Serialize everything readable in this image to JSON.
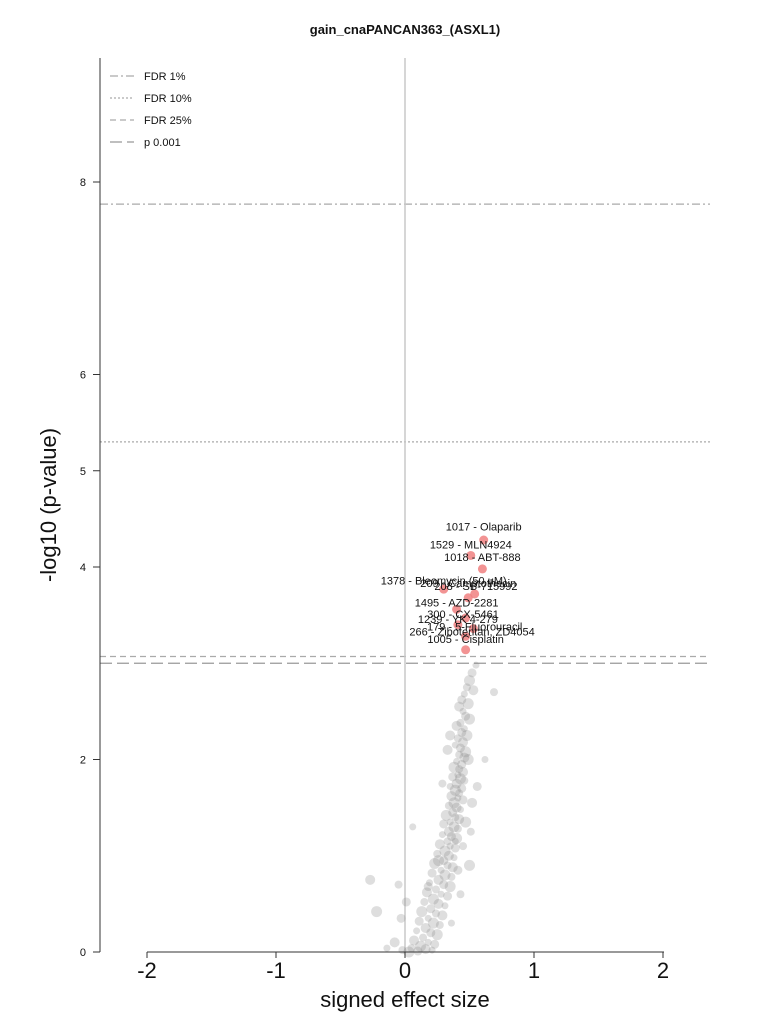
{
  "chart_data": {
    "type": "scatter",
    "title": "gain_cnaPANCAN363_(ASXL1)",
    "xlabel": "signed effect size",
    "ylabel": "-log10 (p-value)",
    "xlim": [
      -2.4,
      2.4
    ],
    "ylim": [
      0,
      9.3
    ],
    "x_ticks": [
      "-2",
      "-1",
      "0",
      "1",
      "2"
    ],
    "y_ticks": [
      "0",
      "2",
      "4",
      "5",
      "6",
      "8"
    ],
    "grid": false,
    "legend_position": "top-left",
    "thresholds": [
      {
        "label": "FDR 1%",
        "value": 7.77,
        "style": "dashdot",
        "color": "#aaaaaa"
      },
      {
        "label": "FDR 10%",
        "value": 5.3,
        "style": "dotted",
        "color": "#aaaaaa"
      },
      {
        "label": "FDR 25%",
        "value": 3.07,
        "style": "dashed",
        "color": "#aaaaaa"
      },
      {
        "label": "p 0.001",
        "value": 3.0,
        "style": "longdash",
        "color": "#999999"
      }
    ],
    "significant_color": "#f08080",
    "nonsignificant_color": "#888888",
    "significant_points": [
      {
        "label": "1017 - Olaparib",
        "x": 0.61,
        "y": 4.28
      },
      {
        "label": "1529 - MLN4924",
        "x": 0.51,
        "y": 4.12
      },
      {
        "label": "1018 - ABT-888",
        "x": 0.6,
        "y": 3.98
      },
      {
        "label": "1378 - Bleomycin (50 uM)",
        "x": 0.3,
        "y": 3.77
      },
      {
        "label": "208 - SB-715992",
        "x": 0.54,
        "y": 3.72
      },
      {
        "label": "209 - Camptothecin",
        "x": 0.49,
        "y": 3.68
      },
      {
        "label": "1495 - AZD-2281",
        "x": 0.4,
        "y": 3.56
      },
      {
        "label": "300 - CX-5461",
        "x": 0.47,
        "y": 3.47
      },
      {
        "label": "1239 - YK 4-279",
        "x": 0.41,
        "y": 3.4
      },
      {
        "label": "179 - 5-Fluorouracil",
        "x": 0.53,
        "y": 3.36
      },
      {
        "label": "266 - Zibotentan, ZD4054",
        "x": 0.47,
        "y": 3.28
      },
      {
        "label": "1005 - Cisplatin",
        "x": 0.47,
        "y": 3.14
      }
    ],
    "label_positions": [
      {
        "x": 0.61,
        "y": 4.38
      },
      {
        "x": 0.51,
        "y": 4.19
      },
      {
        "x": 0.6,
        "y": 4.06
      },
      {
        "x": 0.3,
        "y": 3.82
      },
      {
        "x": 0.55,
        "y": 3.76
      },
      {
        "x": 0.49,
        "y": 3.79
      },
      {
        "x": 0.4,
        "y": 3.59
      },
      {
        "x": 0.45,
        "y": 3.47
      },
      {
        "x": 0.41,
        "y": 3.42
      },
      {
        "x": 0.54,
        "y": 3.34
      },
      {
        "x": 0.52,
        "y": 3.29
      },
      {
        "x": 0.47,
        "y": 3.21
      }
    ],
    "nonsignificant_points": [
      [
        0.55,
        2.98
      ],
      [
        0.52,
        2.9
      ],
      [
        0.5,
        2.82
      ],
      [
        0.48,
        2.75
      ],
      [
        0.53,
        2.72
      ],
      [
        0.46,
        2.68
      ],
      [
        0.44,
        2.62
      ],
      [
        0.49,
        2.58
      ],
      [
        0.69,
        2.7
      ],
      [
        0.42,
        2.55
      ],
      [
        0.45,
        2.5
      ],
      [
        0.47,
        2.45
      ],
      [
        0.5,
        2.42
      ],
      [
        0.43,
        2.38
      ],
      [
        0.4,
        2.35
      ],
      [
        0.46,
        2.32
      ],
      [
        0.44,
        2.28
      ],
      [
        0.48,
        2.25
      ],
      [
        0.41,
        2.22
      ],
      [
        0.45,
        2.18
      ],
      [
        0.39,
        2.15
      ],
      [
        0.43,
        2.12
      ],
      [
        0.47,
        2.08
      ],
      [
        0.42,
        2.05
      ],
      [
        0.46,
        2.02
      ],
      [
        0.4,
        1.98
      ],
      [
        0.44,
        1.95
      ],
      [
        0.38,
        1.92
      ],
      [
        0.42,
        1.9
      ],
      [
        0.45,
        1.87
      ],
      [
        0.41,
        1.84
      ],
      [
        0.37,
        1.82
      ],
      [
        0.43,
        1.8
      ],
      [
        0.46,
        1.78
      ],
      [
        0.4,
        1.75
      ],
      [
        0.35,
        1.72
      ],
      [
        0.44,
        1.7
      ],
      [
        0.39,
        1.68
      ],
      [
        0.42,
        1.65
      ],
      [
        0.36,
        1.62
      ],
      [
        0.41,
        1.6
      ],
      [
        0.45,
        1.58
      ],
      [
        0.38,
        1.55
      ],
      [
        0.34,
        1.52
      ],
      [
        0.4,
        1.5
      ],
      [
        0.43,
        1.48
      ],
      [
        0.37,
        1.45
      ],
      [
        0.32,
        1.42
      ],
      [
        0.39,
        1.4
      ],
      [
        0.42,
        1.38
      ],
      [
        0.35,
        1.35
      ],
      [
        0.3,
        1.33
      ],
      [
        0.38,
        1.3
      ],
      [
        0.41,
        1.28
      ],
      [
        0.34,
        1.25
      ],
      [
        0.29,
        1.22
      ],
      [
        0.36,
        1.2
      ],
      [
        0.4,
        1.18
      ],
      [
        0.33,
        1.15
      ],
      [
        0.27,
        1.12
      ],
      [
        0.35,
        1.1
      ],
      [
        0.39,
        1.08
      ],
      [
        0.31,
        1.05
      ],
      [
        0.25,
        1.02
      ],
      [
        0.34,
        1.0
      ],
      [
        0.38,
        0.98
      ],
      [
        0.3,
        0.95
      ],
      [
        0.23,
        0.92
      ],
      [
        0.33,
        0.9
      ],
      [
        0.37,
        0.88
      ],
      [
        0.28,
        0.85
      ],
      [
        0.21,
        0.82
      ],
      [
        0.31,
        0.8
      ],
      [
        0.36,
        0.78
      ],
      [
        0.26,
        0.75
      ],
      [
        0.19,
        0.72
      ],
      [
        0.3,
        0.7
      ],
      [
        0.35,
        0.68
      ],
      [
        0.24,
        0.65
      ],
      [
        0.17,
        0.62
      ],
      [
        0.28,
        0.6
      ],
      [
        0.33,
        0.58
      ],
      [
        0.22,
        0.55
      ],
      [
        0.15,
        0.52
      ],
      [
        0.26,
        0.5
      ],
      [
        0.31,
        0.48
      ],
      [
        0.2,
        0.45
      ],
      [
        0.13,
        0.42
      ],
      [
        0.24,
        0.4
      ],
      [
        0.29,
        0.38
      ],
      [
        0.18,
        0.35
      ],
      [
        0.11,
        0.32
      ],
      [
        0.22,
        0.3
      ],
      [
        0.27,
        0.28
      ],
      [
        0.16,
        0.25
      ],
      [
        0.09,
        0.22
      ],
      [
        0.2,
        0.2
      ],
      [
        0.25,
        0.18
      ],
      [
        0.14,
        0.15
      ],
      [
        0.07,
        0.12
      ],
      [
        0.18,
        0.1
      ],
      [
        0.23,
        0.08
      ],
      [
        0.12,
        0.06
      ],
      [
        0.05,
        0.04
      ],
      [
        0.16,
        0.03
      ],
      [
        0.21,
        0.02
      ],
      [
        0.1,
        0.01
      ],
      [
        0.03,
        0.0
      ],
      [
        -0.02,
        0.02
      ],
      [
        -0.08,
        0.1
      ],
      [
        -0.14,
        0.04
      ],
      [
        -0.03,
        0.35
      ],
      [
        -0.22,
        0.42
      ],
      [
        -0.05,
        0.7
      ],
      [
        -0.27,
        0.75
      ],
      [
        0.06,
        1.3
      ],
      [
        0.01,
        0.52
      ],
      [
        0.5,
        0.9
      ],
      [
        0.45,
        1.1
      ],
      [
        0.52,
        1.55
      ],
      [
        0.62,
        2.0
      ],
      [
        0.56,
        1.72
      ],
      [
        0.49,
        2.0
      ],
      [
        0.51,
        1.25
      ],
      [
        0.33,
        2.1
      ],
      [
        0.36,
        0.3
      ],
      [
        0.18,
        0.68
      ],
      [
        0.26,
        0.95
      ],
      [
        0.29,
        1.75
      ],
      [
        0.35,
        2.25
      ],
      [
        0.39,
        1.15
      ],
      [
        0.41,
        0.85
      ],
      [
        0.47,
        1.35
      ],
      [
        0.43,
        0.6
      ]
    ]
  }
}
